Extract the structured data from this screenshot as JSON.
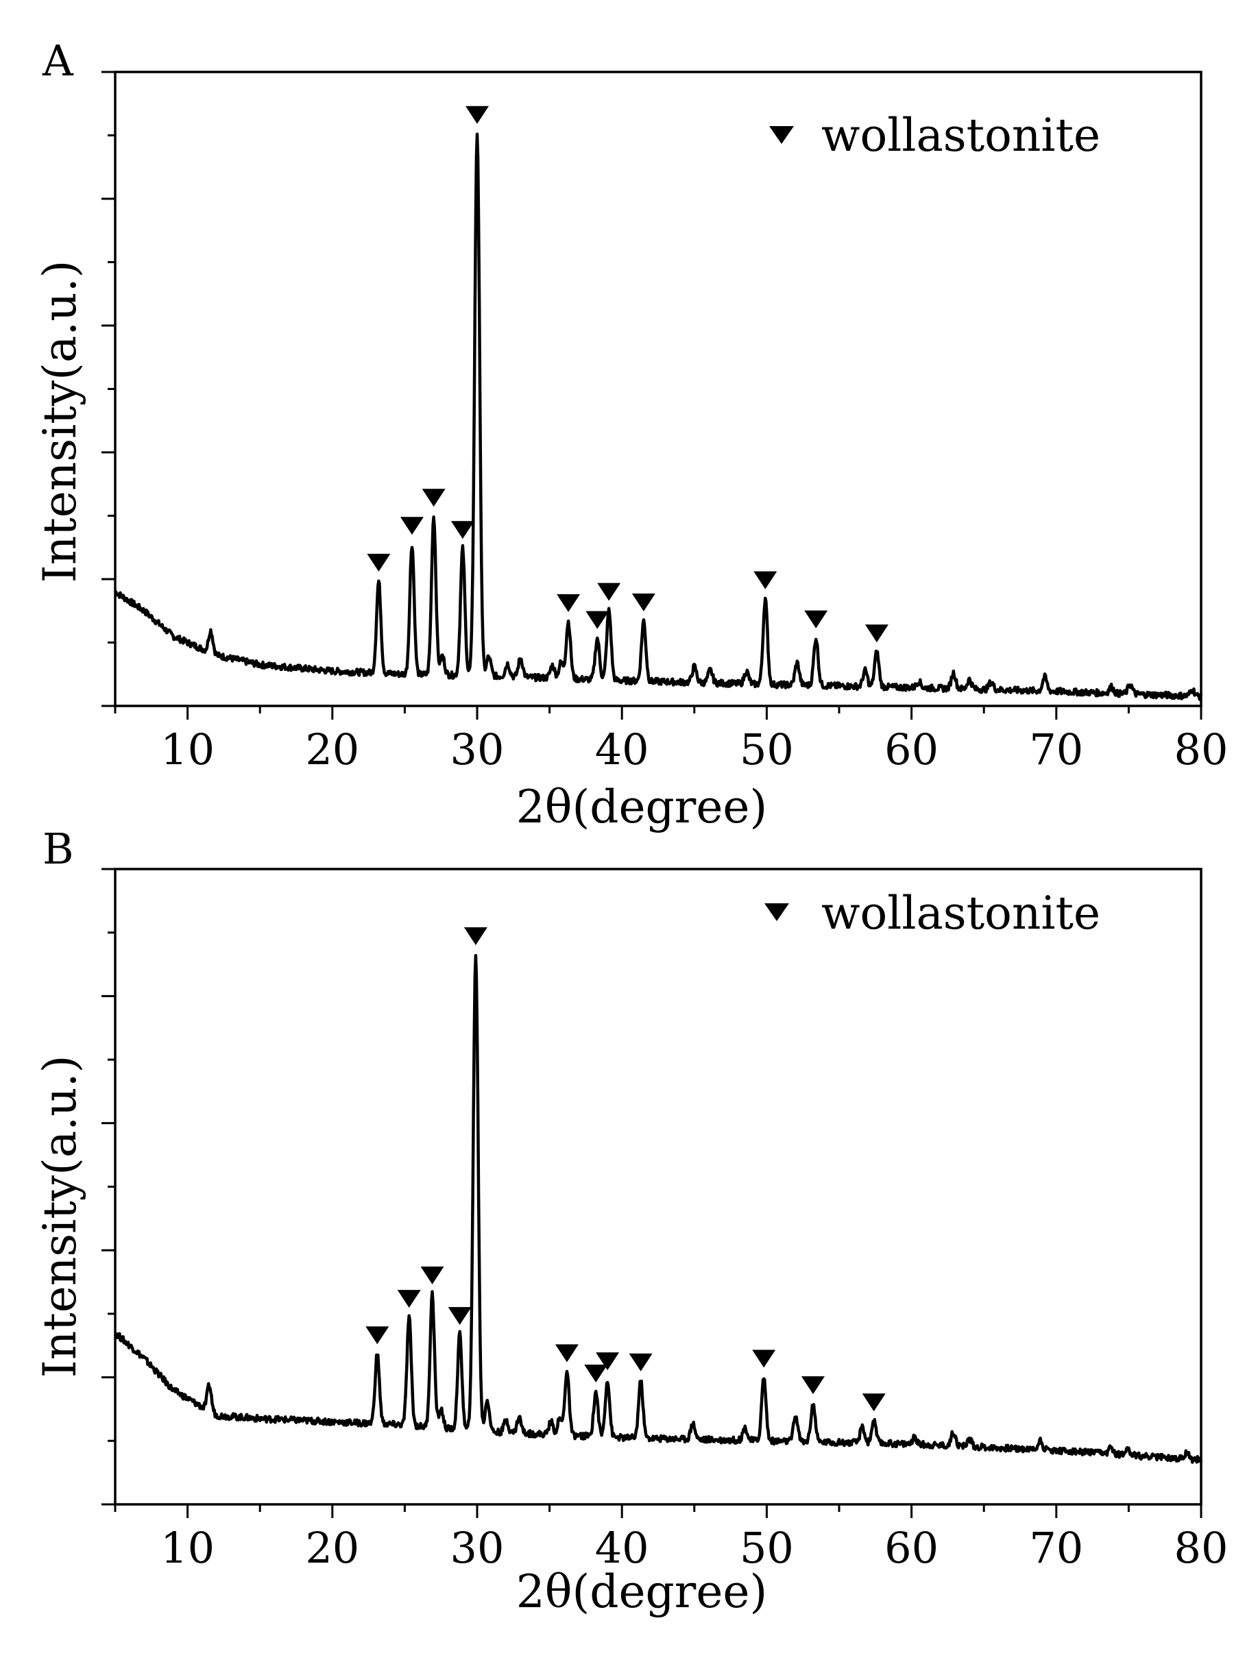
{
  "figure": {
    "description_free": true
  },
  "chart_data": [
    {
      "panel": "A",
      "type": "line",
      "xlabel": "2θ(degree)",
      "ylabel": "Intensity(a.u.)",
      "xlim": [
        5,
        80
      ],
      "ylim": [
        0,
        100
      ],
      "x_ticks": [
        10,
        20,
        30,
        40,
        50,
        60,
        70,
        80
      ],
      "y_ticks_labeled": false,
      "legend": {
        "label": "wollastonite",
        "marker": "▼",
        "placement": "top-right"
      },
      "baseline": [
        [
          5,
          18
        ],
        [
          7,
          15
        ],
        [
          9,
          11
        ],
        [
          12,
          8
        ],
        [
          15,
          6.5
        ],
        [
          20,
          5.5
        ],
        [
          25,
          5
        ],
        [
          30,
          4.8
        ],
        [
          40,
          4
        ],
        [
          50,
          3.4
        ],
        [
          60,
          2.9
        ],
        [
          70,
          2.3
        ],
        [
          80,
          1.5
        ]
      ],
      "peaks": [
        {
          "x": 11.6,
          "h": 3.5,
          "w": 0.15
        },
        {
          "x": 23.2,
          "h": 14.5,
          "w": 0.15
        },
        {
          "x": 25.5,
          "h": 20.5,
          "w": 0.15
        },
        {
          "x": 27.0,
          "h": 25,
          "w": 0.15
        },
        {
          "x": 27.6,
          "h": 3,
          "w": 0.15
        },
        {
          "x": 29.0,
          "h": 20,
          "w": 0.15
        },
        {
          "x": 30.0,
          "h": 85.5,
          "w": 0.17
        },
        {
          "x": 30.8,
          "h": 3,
          "w": 0.15
        },
        {
          "x": 32.1,
          "h": 2,
          "w": 0.15
        },
        {
          "x": 33.0,
          "h": 3,
          "w": 0.15
        },
        {
          "x": 35.2,
          "h": 2,
          "w": 0.15
        },
        {
          "x": 35.8,
          "h": 2.5,
          "w": 0.15
        },
        {
          "x": 36.3,
          "h": 9,
          "w": 0.15
        },
        {
          "x": 38.3,
          "h": 6.5,
          "w": 0.15
        },
        {
          "x": 39.1,
          "h": 11,
          "w": 0.15
        },
        {
          "x": 41.5,
          "h": 9.5,
          "w": 0.15
        },
        {
          "x": 45.0,
          "h": 2.5,
          "w": 0.15
        },
        {
          "x": 46.1,
          "h": 2,
          "w": 0.15
        },
        {
          "x": 48.6,
          "h": 2,
          "w": 0.15
        },
        {
          "x": 49.9,
          "h": 13.5,
          "w": 0.15
        },
        {
          "x": 52.1,
          "h": 3.5,
          "w": 0.15
        },
        {
          "x": 53.4,
          "h": 7.5,
          "w": 0.15
        },
        {
          "x": 56.8,
          "h": 2.5,
          "w": 0.15
        },
        {
          "x": 57.6,
          "h": 5.5,
          "w": 0.15
        },
        {
          "x": 60.5,
          "h": 1,
          "w": 0.15
        },
        {
          "x": 62.9,
          "h": 2.5,
          "w": 0.15
        },
        {
          "x": 64.0,
          "h": 1.5,
          "w": 0.15
        },
        {
          "x": 65.5,
          "h": 1.2,
          "w": 0.15
        },
        {
          "x": 69.2,
          "h": 2.2,
          "w": 0.15
        },
        {
          "x": 73.8,
          "h": 1,
          "w": 0.15
        },
        {
          "x": 75.1,
          "h": 1.5,
          "w": 0.15
        },
        {
          "x": 79.4,
          "h": 1,
          "w": 0.15
        }
      ],
      "markers_x": [
        23.2,
        25.5,
        27.0,
        29.0,
        30.0,
        36.3,
        38.3,
        39.1,
        41.5,
        49.9,
        53.4,
        57.6
      ]
    },
    {
      "panel": "B",
      "type": "line",
      "xlabel": "2θ(degree)",
      "ylabel": "Intensity(a.u.)",
      "xlim": [
        5,
        80
      ],
      "ylim": [
        0,
        100
      ],
      "x_ticks": [
        10,
        20,
        30,
        40,
        50,
        60,
        70,
        80
      ],
      "y_ticks_labeled": false,
      "legend": {
        "label": "wollastonite",
        "marker": "▼",
        "placement": "top-right"
      },
      "baseline": [
        [
          5,
          27
        ],
        [
          7,
          23
        ],
        [
          9,
          18
        ],
        [
          12,
          14
        ],
        [
          15,
          13.5
        ],
        [
          20,
          13
        ],
        [
          25,
          12.5
        ],
        [
          30,
          11.5
        ],
        [
          40,
          10.5
        ],
        [
          50,
          10
        ],
        [
          60,
          9.5
        ],
        [
          70,
          8.5
        ],
        [
          80,
          7
        ]
      ],
      "peaks": [
        {
          "x": 11.5,
          "h": 4,
          "w": 0.15
        },
        {
          "x": 23.1,
          "h": 11,
          "w": 0.15
        },
        {
          "x": 25.3,
          "h": 17,
          "w": 0.15
        },
        {
          "x": 26.9,
          "h": 21,
          "w": 0.15
        },
        {
          "x": 27.5,
          "h": 3,
          "w": 0.15
        },
        {
          "x": 28.8,
          "h": 15,
          "w": 0.15
        },
        {
          "x": 29.9,
          "h": 75,
          "w": 0.17
        },
        {
          "x": 30.7,
          "h": 5,
          "w": 0.15
        },
        {
          "x": 32.0,
          "h": 2,
          "w": 0.15
        },
        {
          "x": 32.9,
          "h": 2.5,
          "w": 0.15
        },
        {
          "x": 35.1,
          "h": 2,
          "w": 0.15
        },
        {
          "x": 35.7,
          "h": 2.5,
          "w": 0.15
        },
        {
          "x": 36.2,
          "h": 10,
          "w": 0.15
        },
        {
          "x": 38.2,
          "h": 7,
          "w": 0.15
        },
        {
          "x": 39.0,
          "h": 9,
          "w": 0.15
        },
        {
          "x": 41.3,
          "h": 9,
          "w": 0.15
        },
        {
          "x": 44.9,
          "h": 2.5,
          "w": 0.15
        },
        {
          "x": 48.5,
          "h": 2,
          "w": 0.15
        },
        {
          "x": 49.8,
          "h": 10,
          "w": 0.15
        },
        {
          "x": 52.0,
          "h": 4,
          "w": 0.15
        },
        {
          "x": 53.2,
          "h": 6,
          "w": 0.15
        },
        {
          "x": 56.6,
          "h": 2.5,
          "w": 0.15
        },
        {
          "x": 57.4,
          "h": 3.5,
          "w": 0.15
        },
        {
          "x": 60.2,
          "h": 1,
          "w": 0.15
        },
        {
          "x": 62.9,
          "h": 2.2,
          "w": 0.15
        },
        {
          "x": 64.0,
          "h": 1.2,
          "w": 0.15
        },
        {
          "x": 68.9,
          "h": 1.5,
          "w": 0.15
        },
        {
          "x": 73.8,
          "h": 1,
          "w": 0.15
        },
        {
          "x": 74.9,
          "h": 1.2,
          "w": 0.15
        },
        {
          "x": 79.0,
          "h": 1,
          "w": 0.15
        }
      ],
      "markers_x": [
        23.1,
        25.3,
        26.9,
        28.8,
        29.9,
        36.2,
        38.2,
        39.0,
        41.3,
        49.8,
        53.2,
        57.4
      ]
    }
  ]
}
